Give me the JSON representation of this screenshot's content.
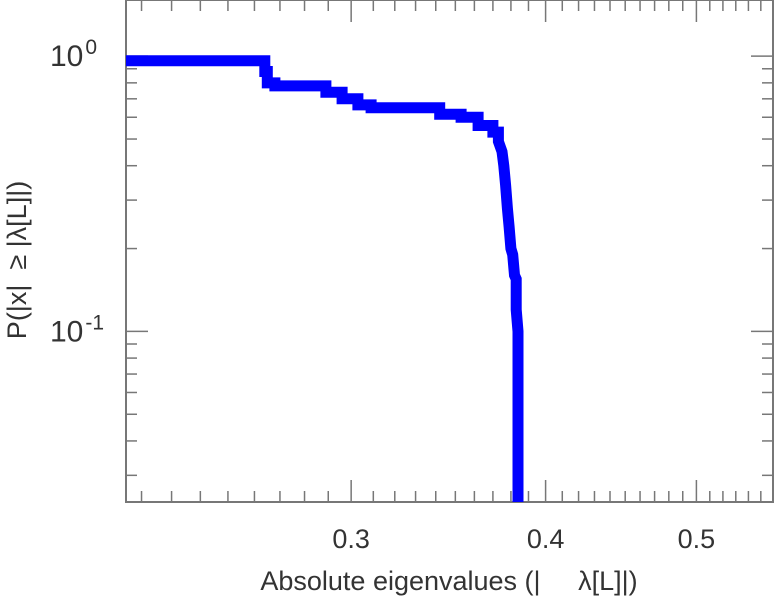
{
  "chart_data": {
    "type": "line",
    "title": "",
    "xlabel": "Absolute eigenvalues (|     λ[L]|)",
    "ylabel": "P(|x|  ≥ |λ[L]|)",
    "xscale": "log",
    "yscale": "log",
    "xlim": [
      0.215,
      0.56
    ],
    "ylim": [
      0.024,
      1.6
    ],
    "x_ticks": [
      {
        "value": 0.3,
        "label": "0.3"
      },
      {
        "value": 0.4,
        "label": "0.4"
      },
      {
        "value": 0.5,
        "label": "0.5"
      }
    ],
    "y_ticks": [
      {
        "value": 1.0,
        "base": "10",
        "exp": "0"
      },
      {
        "value": 0.1,
        "base": "10",
        "exp": "-1"
      }
    ],
    "grid": false,
    "series": [
      {
        "color": "#0000ff",
        "style": "step",
        "x": [
          0.215,
          0.264,
          0.264,
          0.265,
          0.265,
          0.268,
          0.268,
          0.289,
          0.289,
          0.296,
          0.296,
          0.303,
          0.303,
          0.309,
          0.309,
          0.342,
          0.342,
          0.353,
          0.353,
          0.362,
          0.362,
          0.37,
          0.37,
          0.373,
          0.373,
          0.375,
          0.376,
          0.377,
          0.378,
          0.379,
          0.38,
          0.381,
          0.382,
          0.383,
          0.383,
          0.384,
          0.384
        ],
        "y": [
          0.962,
          0.962,
          0.88,
          0.88,
          0.8,
          0.8,
          0.78,
          0.78,
          0.74,
          0.74,
          0.7,
          0.7,
          0.665,
          0.665,
          0.65,
          0.65,
          0.615,
          0.615,
          0.6,
          0.6,
          0.56,
          0.56,
          0.53,
          0.53,
          0.49,
          0.45,
          0.4,
          0.34,
          0.28,
          0.24,
          0.2,
          0.19,
          0.16,
          0.155,
          0.12,
          0.1,
          0.024
        ]
      }
    ]
  }
}
